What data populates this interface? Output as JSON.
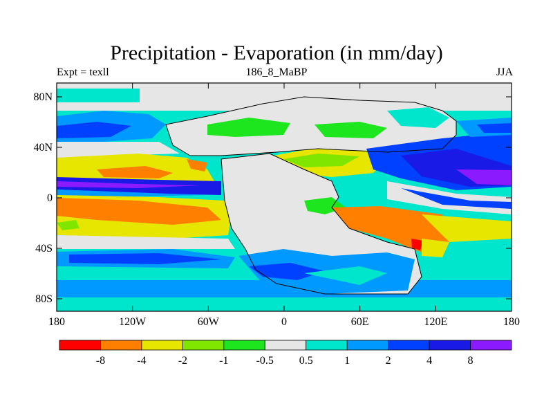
{
  "title": "Precipitation - Evaporation (in mm/day)",
  "experiment": "Expt = texll",
  "period": "186_8_MaBP",
  "season": "JJA",
  "x_ticks": [
    "180",
    "120W",
    "60W",
    "0",
    "60E",
    "120E",
    "180"
  ],
  "y_ticks": [
    "80N",
    "40N",
    "0",
    "40S",
    "80S"
  ],
  "colorbar": {
    "colors": [
      "#ff0000",
      "#ff7f00",
      "#e6e600",
      "#80e600",
      "#1ee61e",
      "#e6e6e6",
      "#00e6cc",
      "#0099ff",
      "#0040ff",
      "#1a1ae6",
      "#8c1aff"
    ],
    "labels": [
      "-8",
      "-4",
      "-2",
      "-1",
      "-0.5",
      "0.5",
      "1",
      "2",
      "4",
      "8"
    ]
  }
}
